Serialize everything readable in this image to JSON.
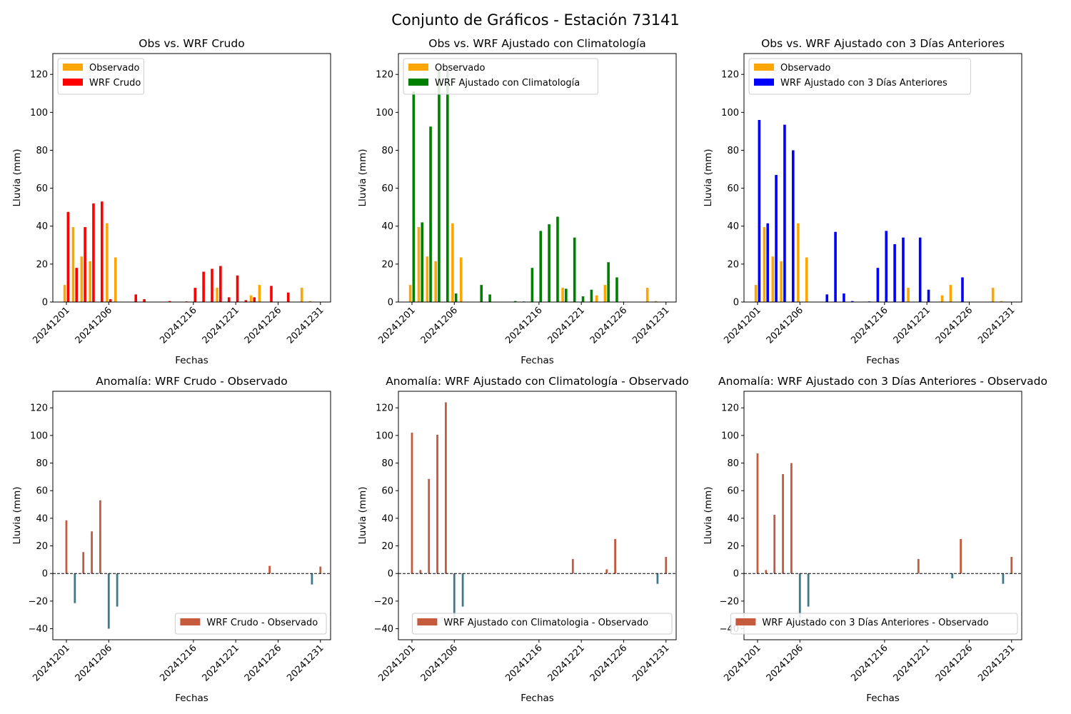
{
  "figure": {
    "title": "Conjunto de Gráficos - Estación 73141"
  },
  "colors": {
    "observado": "#ffa500",
    "crudo": "#ff0000",
    "climatologia": "#008000",
    "tres_dias": "#0000ff",
    "anomalia_pos": "#c65a3c",
    "anomalia_neg": "#3b7a8f"
  },
  "chart_data": [
    {
      "type": "bar",
      "title": "Obs vs. WRF Crudo",
      "xlabel": "Fechas",
      "ylabel": "Lluvia (mm)",
      "xlim": [
        -1.6,
        31.2
      ],
      "ylim": [
        0,
        131
      ],
      "yticks": [
        0,
        20,
        40,
        60,
        80,
        100,
        120
      ],
      "x_ticks": [
        "20241201",
        "20241206",
        "20241216",
        "20241221",
        "20241226",
        "20241231"
      ],
      "legend_loc": "upper left",
      "series": [
        {
          "name": "Observado",
          "color_key": "observado",
          "values": [
            9,
            39.5,
            24,
            21.5,
            0,
            41.5,
            23.5,
            0,
            0,
            0,
            0,
            0,
            0,
            0,
            0,
            0,
            0,
            0,
            7.5,
            0,
            0,
            0,
            3.5,
            9,
            0,
            0,
            0,
            0,
            7.5,
            0.5,
            0
          ]
        },
        {
          "name": "WRF Crudo",
          "color_key": "crudo",
          "values": [
            47.5,
            18,
            39.5,
            52,
            53,
            1.5,
            0,
            0,
            4,
            1.5,
            0,
            0,
            0.5,
            0,
            0.3,
            7.5,
            16,
            17.5,
            19,
            2.5,
            14,
            1,
            2.5,
            0,
            8.5,
            0,
            5,
            0,
            0,
            0,
            0
          ]
        }
      ]
    },
    {
      "type": "bar",
      "title": "Obs vs. WRF Ajustado con Climatología",
      "xlabel": "Fechas",
      "ylabel": "Lluvia (mm)",
      "xlim": [
        -1.6,
        31.2
      ],
      "ylim": [
        0,
        131
      ],
      "yticks": [
        0,
        20,
        40,
        60,
        80,
        100,
        120
      ],
      "x_ticks": [
        "20241201",
        "20241206",
        "20241216",
        "20241221",
        "20241226",
        "20241231"
      ],
      "legend_loc": "upper left",
      "series": [
        {
          "name": "Observado",
          "color_key": "observado",
          "values": [
            9,
            39.5,
            24,
            21.5,
            0,
            41.5,
            23.5,
            0,
            0,
            0,
            0,
            0,
            0,
            0,
            0,
            0,
            0,
            0,
            7.5,
            0,
            0,
            0,
            3.5,
            9,
            0,
            0,
            0,
            0,
            7.5,
            0.5,
            0
          ]
        },
        {
          "name": "WRF Ajustado con Climatología",
          "color_key": "climatologia",
          "values": [
            111,
            42,
            92.5,
            122,
            122,
            4.5,
            0,
            0,
            9,
            4,
            0,
            0,
            0.5,
            0.3,
            18,
            37.5,
            41,
            45,
            7,
            34,
            3,
            6.5,
            0,
            21,
            13,
            0,
            0,
            0,
            0,
            0,
            0
          ]
        }
      ]
    },
    {
      "type": "bar",
      "title": "Obs vs. WRF Ajustado con 3 Días Anteriores",
      "xlabel": "Fechas",
      "ylabel": "Lluvia (mm)",
      "xlim": [
        -1.6,
        31.2
      ],
      "ylim": [
        0,
        131
      ],
      "yticks": [
        0,
        20,
        40,
        60,
        80,
        100,
        120
      ],
      "x_ticks": [
        "20241201",
        "20241206",
        "20241216",
        "20241221",
        "20241226",
        "20241231"
      ],
      "legend_loc": "upper left",
      "series": [
        {
          "name": "Observado",
          "color_key": "observado",
          "values": [
            9,
            39.5,
            24,
            21.5,
            0,
            41.5,
            23.5,
            0,
            0,
            0,
            0,
            0,
            0,
            0,
            0,
            0,
            0,
            0,
            7.5,
            0,
            0,
            0,
            3.5,
            9,
            0,
            0,
            0,
            0,
            7.5,
            0.5,
            0
          ]
        },
        {
          "name": "WRF Ajustado con 3 Días Anteriores",
          "color_key": "tres_dias",
          "values": [
            96,
            41.5,
            67,
            93.5,
            80,
            0,
            0,
            0,
            4,
            37,
            4.5,
            0.5,
            0,
            0.3,
            18,
            37.5,
            30.5,
            34,
            0,
            34,
            6.5,
            0,
            0,
            0,
            13,
            0,
            0,
            0,
            0,
            0,
            0
          ]
        }
      ]
    },
    {
      "type": "bar",
      "title": "Anomalía: WRF Crudo - Observado",
      "xlabel": "Fechas",
      "ylabel": "Lluvia (mm)",
      "xlim": [
        -1.6,
        31.2
      ],
      "ylim": [
        -48,
        132
      ],
      "yticks": [
        -40,
        -20,
        0,
        20,
        40,
        60,
        80,
        100,
        120
      ],
      "x_ticks": [
        "20241201",
        "20241206",
        "20241216",
        "20241221",
        "20241226",
        "20241231"
      ],
      "legend_loc": "lower right",
      "zero_line": true,
      "series": [
        {
          "name": "WRF Crudo - Observado",
          "color_key": "anomalia_pos",
          "values": [
            38.5,
            -21.5,
            15.5,
            30.5,
            53,
            -40,
            -24,
            0,
            0,
            0,
            0,
            0,
            0,
            0,
            0,
            0,
            0,
            0,
            0,
            0,
            0,
            0,
            0,
            0,
            5.5,
            0,
            0,
            0,
            0,
            -8,
            5
          ]
        }
      ]
    },
    {
      "type": "bar",
      "title": "Anomalía: WRF Ajustado con Climatología - Observado",
      "xlabel": "Fechas",
      "ylabel": "Lluvia (mm)",
      "xlim": [
        -1.6,
        31.2
      ],
      "ylim": [
        -48,
        132
      ],
      "yticks": [
        -40,
        -20,
        0,
        20,
        40,
        60,
        80,
        100,
        120
      ],
      "x_ticks": [
        "20241201",
        "20241206",
        "20241216",
        "20241221",
        "20241226",
        "20241231"
      ],
      "legend_loc": "lower right",
      "zero_line": true,
      "series": [
        {
          "name": "WRF Ajustado con Climatologia - Observado",
          "color_key": "anomalia_pos",
          "values": [
            102,
            2.5,
            68.5,
            100.5,
            124,
            -32,
            -24,
            0,
            0,
            0,
            0,
            0,
            0,
            0,
            0,
            0,
            0,
            0,
            0,
            10.5,
            0,
            0,
            0,
            3,
            25,
            0,
            0,
            0,
            0,
            -7.5,
            12
          ]
        }
      ]
    },
    {
      "type": "bar",
      "title": "Anomalía: WRF Ajustado con 3 Días Anteriores - Observado",
      "xlabel": "Fechas",
      "ylabel": "Lluvia (mm)",
      "xlim": [
        -1.6,
        31.2
      ],
      "ylim": [
        -48,
        132
      ],
      "yticks": [
        -40,
        -20,
        0,
        20,
        40,
        60,
        80,
        100,
        120
      ],
      "x_ticks": [
        "20241201",
        "20241206",
        "20241216",
        "20241221",
        "20241226",
        "20241231"
      ],
      "legend_loc": "lower right",
      "zero_line": true,
      "series": [
        {
          "name": "WRF Ajustado con 3 Días Anteriores - Observado",
          "color_key": "anomalia_pos",
          "values": [
            87,
            2.5,
            42.5,
            72,
            80,
            -32,
            -24,
            0,
            0,
            0,
            0,
            0,
            0,
            0,
            0,
            0,
            0,
            0,
            0,
            10.5,
            0,
            0,
            0,
            -3.5,
            25,
            0,
            0,
            0,
            0,
            -7.5,
            12
          ]
        }
      ]
    }
  ]
}
